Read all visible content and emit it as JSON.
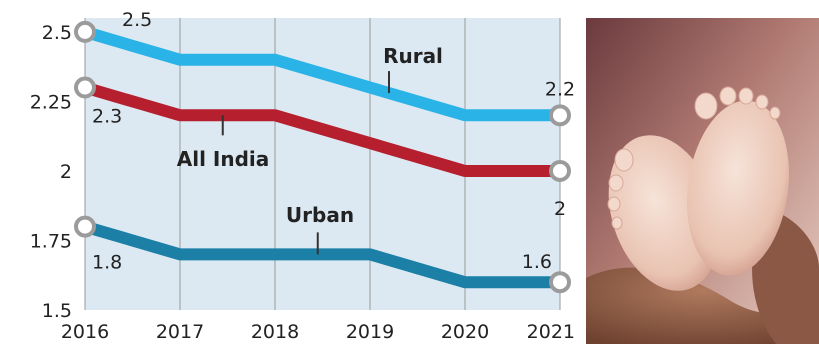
{
  "chart_data": {
    "type": "line",
    "title": "",
    "xlabel": "",
    "ylabel": "",
    "x": [
      2016,
      2017,
      2018,
      2019,
      2020,
      2021
    ],
    "x_tick_labels": [
      "2016",
      "2017",
      "2018",
      "2019",
      "2020",
      "2021"
    ],
    "ylim": [
      1.5,
      2.55
    ],
    "y_ticks": [
      1.5,
      1.75,
      2,
      2.25,
      2.5
    ],
    "y_tick_labels": [
      "1.5",
      "1.75",
      "2",
      "2.25",
      "2.5"
    ],
    "grid": "vertical",
    "series": [
      {
        "key": "rural",
        "name": "Rural",
        "color": "#2ab3e6",
        "values": [
          2.5,
          2.4,
          2.4,
          2.3,
          2.2,
          2.2
        ],
        "labels": [
          {
            "index": 0,
            "text": "2.5"
          },
          {
            "index": 5,
            "text": "2.2"
          }
        ]
      },
      {
        "key": "all_india",
        "name": "All India",
        "color": "#b51f2e",
        "values": [
          2.3,
          2.2,
          2.2,
          2.1,
          2.0,
          2.0
        ],
        "labels": [
          {
            "index": 0,
            "text": "2.3"
          },
          {
            "index": 5,
            "text": "2"
          }
        ]
      },
      {
        "key": "urban",
        "name": "Urban",
        "color": "#1b7fa6",
        "values": [
          1.8,
          1.7,
          1.7,
          1.7,
          1.6,
          1.6
        ],
        "labels": [
          {
            "index": 0,
            "text": "1.8"
          },
          {
            "index": 5,
            "text": "1.6"
          }
        ]
      }
    ]
  },
  "photo": {
    "icon": "baby-feet-photo"
  }
}
